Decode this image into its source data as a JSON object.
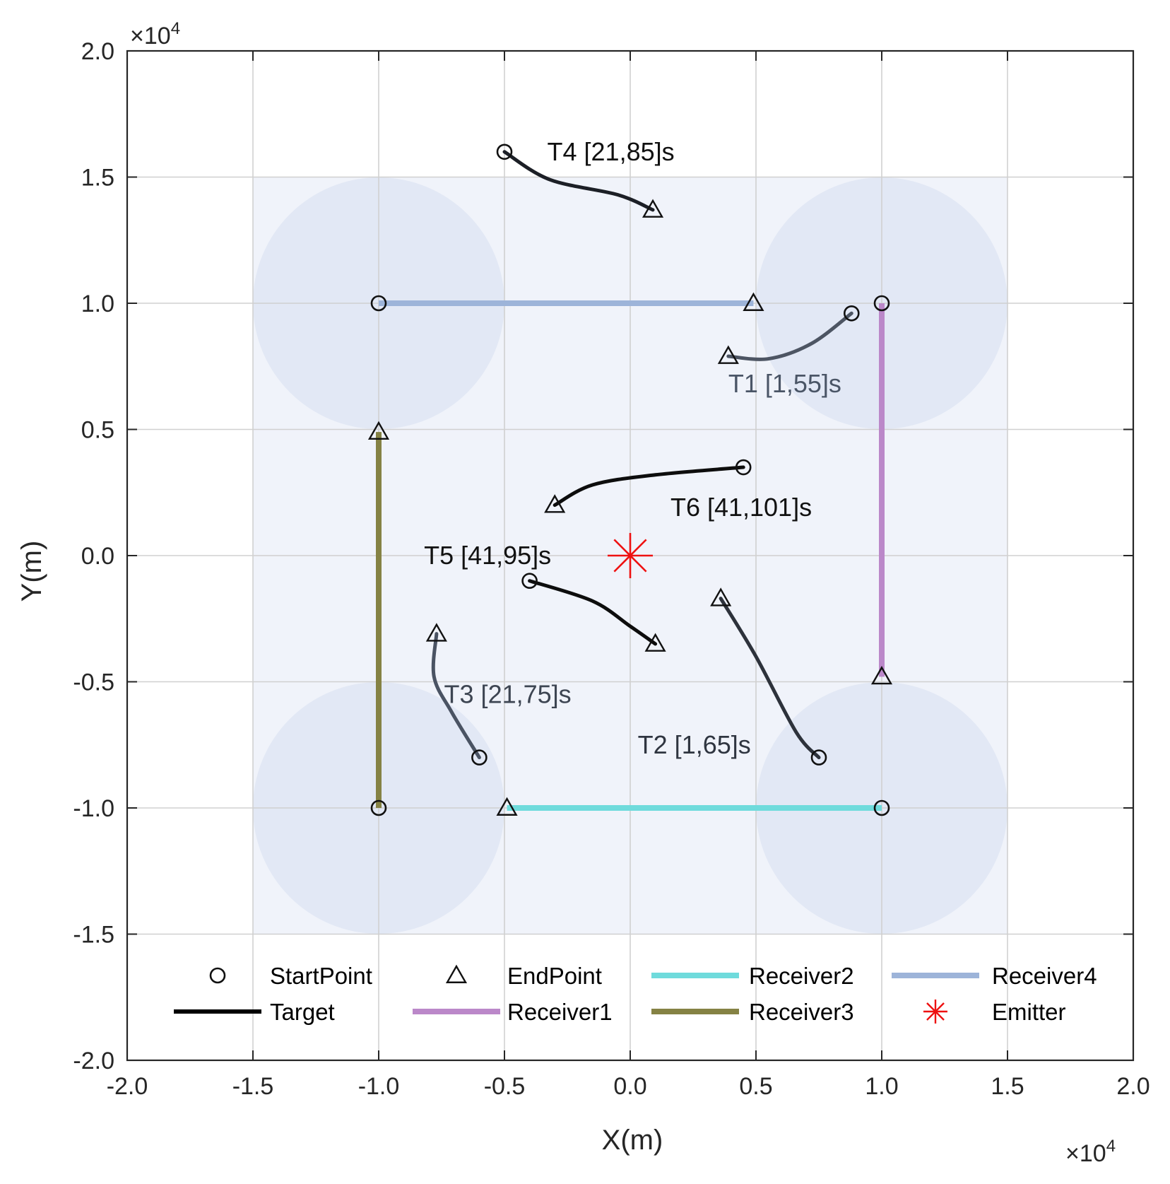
{
  "chart_data": {
    "type": "line",
    "title": "",
    "xlabel": "X(m)",
    "ylabel": "Y(m)",
    "x_multiplier": "×10^4",
    "y_multiplier": "×10^4",
    "xlim": [
      -20000,
      20000
    ],
    "ylim": [
      -20000,
      20000
    ],
    "x_ticks": [
      -20000,
      -15000,
      -10000,
      -5000,
      0,
      5000,
      10000,
      15000,
      20000
    ],
    "y_ticks": [
      -20000,
      -15000,
      -10000,
      -5000,
      0,
      5000,
      10000,
      15000,
      20000
    ],
    "x_tick_labels": [
      "-2.0",
      "-1.5",
      "-1.0",
      "-0.5",
      "0.0",
      "0.5",
      "1.0",
      "1.5",
      "2.0"
    ],
    "y_tick_labels": [
      "-2.0",
      "-1.5",
      "-1.0",
      "-0.5",
      "0.0",
      "0.5",
      "1.0",
      "1.5",
      "2.0"
    ],
    "grid": true,
    "coverage": {
      "color": "#dde4f3",
      "rects": [
        {
          "x0": -15000,
          "y0": -15000,
          "x1": 15000,
          "y1": 15000
        }
      ],
      "circles": [
        {
          "cx": -10000,
          "cy": 10000,
          "r": 5000
        },
        {
          "cx": 10000,
          "cy": 10000,
          "r": 5000
        },
        {
          "cx": -10000,
          "cy": -10000,
          "r": 5000
        },
        {
          "cx": 10000,
          "cy": -10000,
          "r": 5000
        }
      ]
    },
    "receivers": [
      {
        "name": "Receiver1",
        "color": "#bb88c9",
        "start": [
          10000,
          10000
        ],
        "end": [
          10000,
          -4800
        ]
      },
      {
        "name": "Receiver2",
        "color": "#6fdbdc",
        "start": [
          10000,
          -10000
        ],
        "end": [
          -4900,
          -10000
        ]
      },
      {
        "name": "Receiver3",
        "color": "#858244",
        "start": [
          -10000,
          -10000
        ],
        "end": [
          -10000,
          4900
        ]
      },
      {
        "name": "Receiver4",
        "color": "#9db4d9",
        "start": [
          -10000,
          10000
        ],
        "end": [
          4900,
          10000
        ]
      }
    ],
    "targets": [
      {
        "label": "T1 [1,55]s",
        "color": "#4d5563",
        "label_color": "#4a5566",
        "points": [
          [
            8800,
            9600
          ],
          [
            7200,
            8400
          ],
          [
            5500,
            7800
          ],
          [
            3900,
            7900
          ]
        ],
        "label_pos": [
          3900,
          6800
        ]
      },
      {
        "label": "T2 [1,65]s",
        "color": "#2d323b",
        "label_color": "#2f3540",
        "points": [
          [
            7500,
            -8000
          ],
          [
            6600,
            -7000
          ],
          [
            5000,
            -4000
          ],
          [
            3600,
            -1700
          ]
        ],
        "label_pos": [
          300,
          -7500
        ]
      },
      {
        "label": "T3 [21,75]s",
        "color": "#4a5363",
        "label_color": "#3d4552",
        "points": [
          [
            -6000,
            -8000
          ],
          [
            -7100,
            -6200
          ],
          [
            -7800,
            -4800
          ],
          [
            -7700,
            -3100
          ]
        ],
        "label_pos": [
          -7400,
          -5500
        ]
      },
      {
        "label": "T4 [21,85]s",
        "color": "#1c1f26",
        "label_color": "#111111",
        "points": [
          [
            -5000,
            16000
          ],
          [
            -3200,
            14900
          ],
          [
            -500,
            14300
          ],
          [
            900,
            13700
          ]
        ],
        "label_pos": [
          -3300,
          16000
        ]
      },
      {
        "label": "T5 [41,95]s",
        "color": "#0d0d0d",
        "label_color": "#111111",
        "points": [
          [
            -4000,
            -1000
          ],
          [
            -1500,
            -1800
          ],
          [
            0,
            -2800
          ],
          [
            1000,
            -3500
          ]
        ],
        "label_pos": [
          -8200,
          0
        ]
      },
      {
        "label": "T6 [41,101]s",
        "color": "#0d0d0d",
        "label_color": "#111111",
        "points": [
          [
            4500,
            3500
          ],
          [
            1000,
            3200
          ],
          [
            -1500,
            2800
          ],
          [
            -3000,
            2000
          ]
        ],
        "label_pos": [
          1600,
          1900
        ]
      }
    ],
    "emitter": {
      "name": "Emitter",
      "position": [
        0,
        0
      ],
      "color": "#ee1111"
    },
    "legend": {
      "position": "bottom",
      "entries": [
        {
          "label": "StartPoint",
          "marker": "circle"
        },
        {
          "label": "EndPoint",
          "marker": "triangle"
        },
        {
          "label": "Receiver2",
          "marker": "line",
          "color": "#6fdbdc"
        },
        {
          "label": "Receiver4",
          "marker": "line",
          "color": "#9db4d9"
        },
        {
          "label": "Target",
          "marker": "line",
          "color": "#000000"
        },
        {
          "label": "Receiver1",
          "marker": "line",
          "color": "#bb88c9"
        },
        {
          "label": "Receiver3",
          "marker": "line",
          "color": "#858244"
        },
        {
          "label": "Emitter",
          "marker": "asterisk",
          "color": "#ee1111"
        }
      ]
    }
  }
}
